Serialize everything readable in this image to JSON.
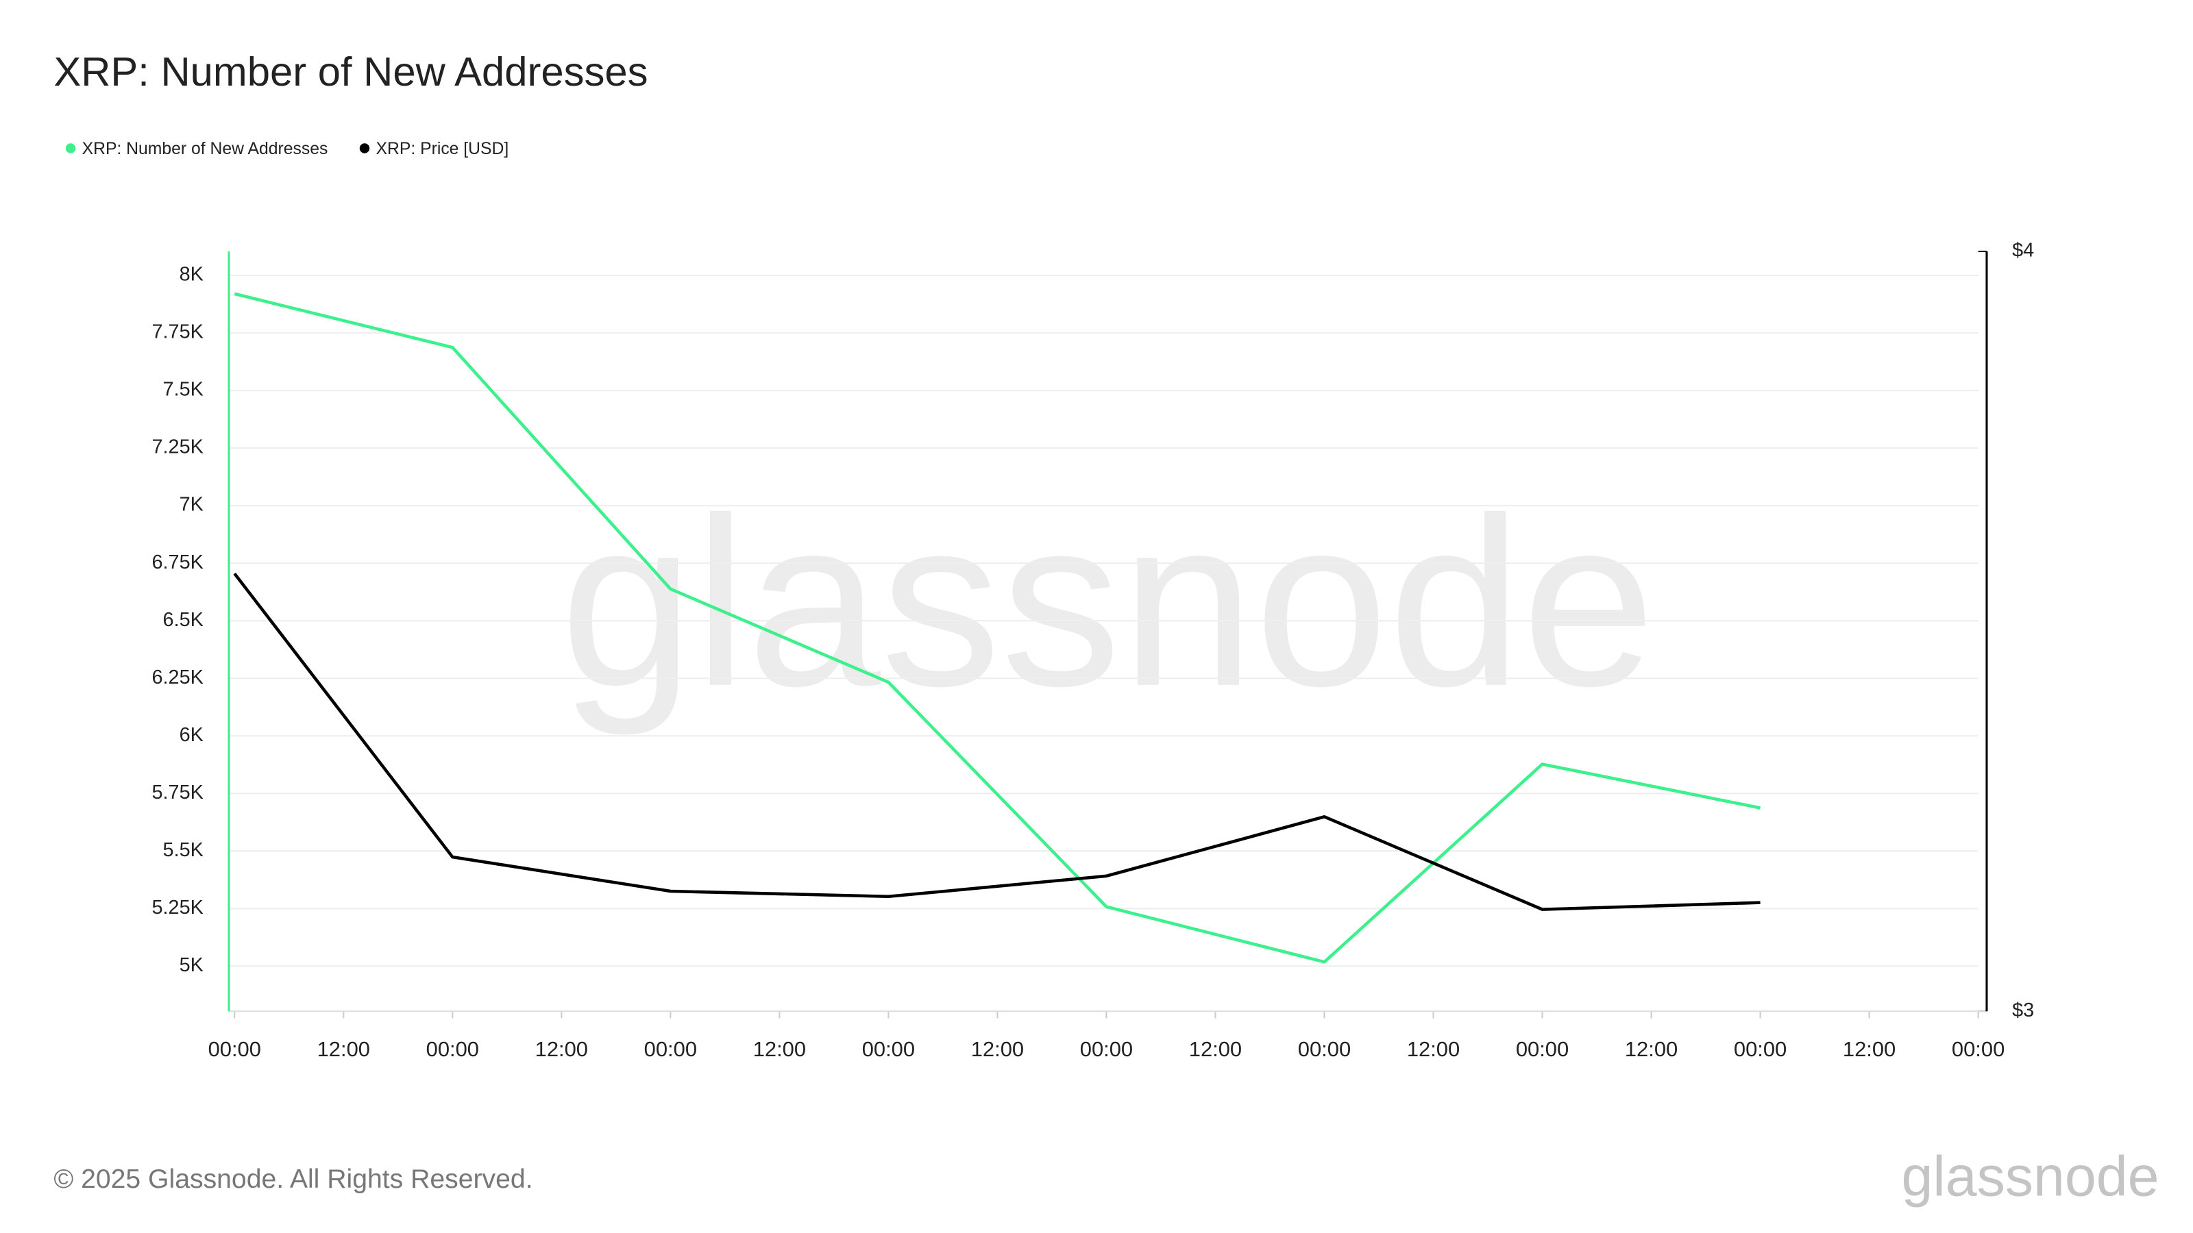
{
  "chart_data": {
    "type": "line",
    "title": "XRP: Number of New Addresses",
    "watermark": "glassnode",
    "footer": "© 2025 Glassnode. All Rights Reserved.",
    "logo": "glassnode",
    "x": [
      0,
      1,
      2,
      3,
      4,
      5,
      6,
      7
    ],
    "xlim": [
      0,
      8
    ],
    "xticks": [
      {
        "value": 0,
        "label": "00:00"
      },
      {
        "value": 0.5,
        "label": "12:00"
      },
      {
        "value": 1,
        "label": "00:00"
      },
      {
        "value": 1.5,
        "label": "12:00"
      },
      {
        "value": 2,
        "label": "00:00"
      },
      {
        "value": 2.5,
        "label": "12:00"
      },
      {
        "value": 3,
        "label": "00:00"
      },
      {
        "value": 3.5,
        "label": "12:00"
      },
      {
        "value": 4,
        "label": "00:00"
      },
      {
        "value": 4.5,
        "label": "12:00"
      },
      {
        "value": 5,
        "label": "00:00"
      },
      {
        "value": 5.5,
        "label": "12:00"
      },
      {
        "value": 6,
        "label": "00:00"
      },
      {
        "value": 6.5,
        "label": "12:00"
      },
      {
        "value": 7,
        "label": "00:00"
      },
      {
        "value": 7.5,
        "label": "12:00"
      },
      {
        "value": 8,
        "label": "00:00"
      }
    ],
    "ylim": [
      4804,
      8104
    ],
    "yticks": [
      {
        "value": 5000,
        "label": "5K"
      },
      {
        "value": 5250,
        "label": "5.25K"
      },
      {
        "value": 5500,
        "label": "5.5K"
      },
      {
        "value": 5750,
        "label": "5.75K"
      },
      {
        "value": 6000,
        "label": "6K"
      },
      {
        "value": 6250,
        "label": "6.25K"
      },
      {
        "value": 6500,
        "label": "6.5K"
      },
      {
        "value": 6750,
        "label": "6.75K"
      },
      {
        "value": 7000,
        "label": "7K"
      },
      {
        "value": 7250,
        "label": "7.25K"
      },
      {
        "value": 7500,
        "label": "7.5K"
      },
      {
        "value": 7750,
        "label": "7.75K"
      },
      {
        "value": 8000,
        "label": "8K"
      }
    ],
    "y2lim": [
      3,
      4
    ],
    "y2ticks": [
      {
        "value": 3,
        "label": "$3"
      },
      {
        "value": 4,
        "label": "$4"
      }
    ],
    "grid": true,
    "series": [
      {
        "name": "XRP: Number of New Addresses",
        "color": "#3cf08c",
        "values": [
          7920,
          7687,
          6638,
          6233,
          5258,
          5018,
          5877,
          5687
        ]
      },
      {
        "name": "XRP: Price [USD]",
        "color": "#000000",
        "axis": "y2",
        "values": [
          3.576,
          3.203,
          3.158,
          3.151,
          3.178,
          3.256,
          3.134,
          3.143
        ]
      }
    ]
  }
}
